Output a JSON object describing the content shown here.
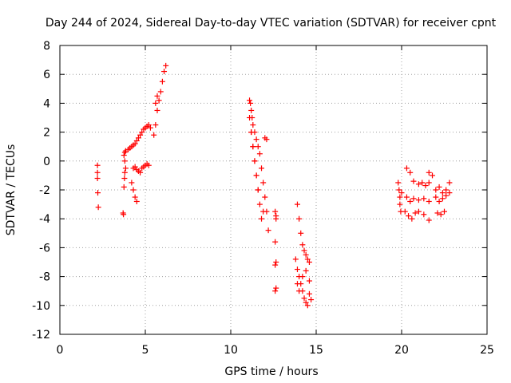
{
  "chart_data": {
    "type": "scatter",
    "title": "Day 244 of 2024, Sidereal Day-to-day VTEC variation (SDTVAR) for receiver cpnt",
    "xlabel": "GPS time / hours",
    "ylabel": "SDTVAR / TECUs",
    "xlim": [
      0,
      25
    ],
    "ylim": [
      -12,
      8
    ],
    "xticks": [
      0,
      5,
      10,
      15,
      20,
      25
    ],
    "yticks": [
      -12,
      -10,
      -8,
      -6,
      -4,
      -2,
      0,
      2,
      4,
      6,
      8
    ],
    "grid": true,
    "marker": "plus",
    "color": "#ff0000",
    "series": [
      {
        "name": "SDTVAR",
        "x": [
          2.2,
          2.2,
          2.2,
          2.22,
          2.25,
          3.7,
          3.72,
          3.75,
          3.78,
          3.8,
          3.85,
          3.8,
          3.75,
          3.8,
          3.85,
          4.0,
          4.1,
          4.2,
          4.3,
          4.4,
          4.5,
          4.6,
          4.7,
          4.8,
          4.9,
          5.0,
          5.1,
          5.2,
          5.3,
          4.3,
          4.4,
          4.5,
          4.6,
          4.7,
          4.8,
          4.9,
          5.0,
          5.1,
          5.2,
          4.2,
          4.3,
          4.4,
          4.5,
          5.5,
          5.6,
          5.7,
          5.8,
          5.9,
          6.0,
          6.1,
          6.2,
          5.6,
          5.7,
          11.1,
          11.15,
          11.2,
          11.25,
          11.3,
          11.4,
          11.5,
          11.6,
          11.7,
          11.8,
          11.9,
          12.0,
          12.1,
          12.2,
          11.2,
          11.3,
          11.4,
          11.5,
          11.6,
          11.7,
          11.8,
          11.9,
          11.1,
          11.2,
          11.3,
          11.4,
          11.5,
          11.6,
          12.0,
          12.1,
          12.6,
          12.65,
          12.6,
          12.65,
          12.6,
          12.65,
          12.6,
          12.65,
          13.9,
          14.0,
          14.1,
          14.2,
          14.3,
          14.4,
          14.5,
          14.6,
          13.8,
          13.9,
          14.0,
          14.1,
          14.2,
          14.3,
          14.4,
          14.5,
          14.6,
          14.7,
          13.9,
          14.0,
          14.2,
          14.4,
          14.6,
          19.8,
          19.85,
          19.9,
          19.9,
          19.95,
          20.0,
          20.3,
          20.5,
          20.7,
          21.0,
          21.2,
          21.4,
          21.6,
          20.3,
          20.5,
          20.7,
          21.0,
          21.3,
          21.6,
          20.2,
          20.4,
          20.6,
          20.8,
          21.0,
          21.3,
          21.6,
          22.0,
          22.2,
          22.4,
          22.6,
          22.8,
          22.0,
          22.2,
          22.4,
          22.6,
          22.8,
          22.1,
          22.3,
          22.5,
          21.6,
          21.8
        ],
        "y": [
          -0.3,
          -0.8,
          -1.2,
          -2.2,
          -3.2,
          -3.6,
          -3.7,
          -1.8,
          -1.2,
          -0.8,
          -0.5,
          0.0,
          0.4,
          0.6,
          0.7,
          0.8,
          0.9,
          1.0,
          1.1,
          1.2,
          1.4,
          1.6,
          1.8,
          2.0,
          2.2,
          2.3,
          2.4,
          2.5,
          2.3,
          -0.5,
          -0.4,
          -0.6,
          -0.7,
          -0.8,
          -0.5,
          -0.4,
          -0.3,
          -0.2,
          -0.3,
          -1.5,
          -2.0,
          -2.5,
          -2.8,
          1.8,
          2.5,
          3.5,
          4.2,
          4.8,
          5.5,
          6.2,
          6.6,
          4.0,
          4.5,
          4.2,
          4.0,
          3.5,
          3.0,
          2.5,
          2.0,
          1.5,
          1.0,
          0.5,
          -0.5,
          -1.5,
          -2.5,
          -3.5,
          -4.8,
          2.0,
          1.0,
          0.0,
          -1.0,
          -2.0,
          -3.0,
          -4.0,
          -3.5,
          3.0,
          2.0,
          1.0,
          0.0,
          -1.0,
          -2.0,
          1.6,
          1.5,
          -3.5,
          -4.0,
          -5.6,
          -7.0,
          -7.2,
          -8.8,
          -9.0,
          -3.8,
          -3.0,
          -4.0,
          -5.0,
          -5.8,
          -6.2,
          -6.5,
          -6.8,
          -7.0,
          -6.8,
          -7.5,
          -8.0,
          -8.5,
          -9.0,
          -9.5,
          -9.8,
          -10.0,
          -9.2,
          -9.6,
          -8.5,
          -9.0,
          -8.0,
          -7.6,
          -8.3,
          -1.5,
          -2.0,
          -2.5,
          -3.0,
          -3.5,
          -2.2,
          -0.5,
          -0.8,
          -1.4,
          -1.6,
          -1.5,
          -1.7,
          -1.5,
          -2.5,
          -2.8,
          -2.6,
          -2.7,
          -2.6,
          -2.8,
          -3.5,
          -3.8,
          -4.0,
          -3.6,
          -3.5,
          -3.7,
          -4.1,
          -2.0,
          -1.8,
          -2.2,
          -2.0,
          -1.5,
          -2.5,
          -2.8,
          -2.6,
          -2.4,
          -2.2,
          -3.6,
          -3.7,
          -3.5,
          -0.8,
          -1.0
        ]
      }
    ]
  }
}
